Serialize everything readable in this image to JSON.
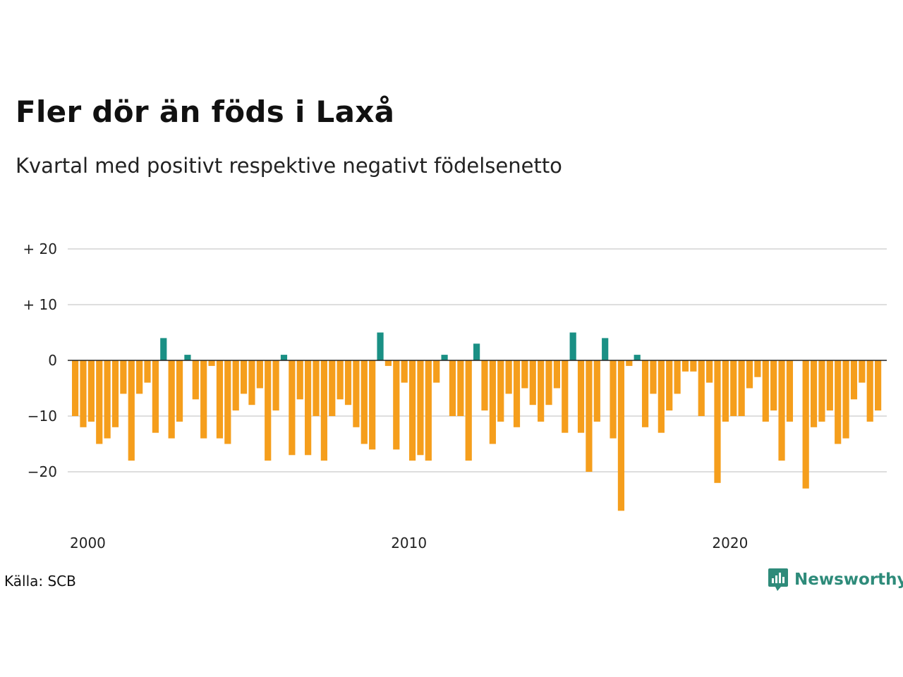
{
  "title": "Fler dör än föds i Laxå",
  "subtitle": "Kvartal med positivt respektive negativt födelsenetto",
  "source": "Källa: SCB",
  "brand": {
    "name": "Newsworthy",
    "icon": "newsworthy-logo-icon",
    "color": "#2e8b7a"
  },
  "colors": {
    "positive": "#1a9085",
    "negative": "#f59e1c",
    "grid": "#dedede",
    "zero_line": "#222222"
  },
  "chart_data": {
    "type": "bar",
    "xlabel": "",
    "ylabel": "",
    "x_start": "2000 Q1",
    "x_step": "quarter",
    "ylim": [
      -28,
      22
    ],
    "y_ticks": [
      20,
      10,
      0,
      -10,
      -20
    ],
    "y_tick_labels": [
      "+ 20",
      "+ 10",
      "0",
      "−10",
      "−20"
    ],
    "x_ticks": [
      "2000",
      "2010",
      "2020"
    ],
    "grid": true,
    "legend": "none",
    "values": [
      -10,
      -12,
      -11,
      -15,
      -14,
      -12,
      -6,
      -18,
      -6,
      -4,
      -13,
      4,
      -14,
      -11,
      1,
      -7,
      -14,
      -1,
      -14,
      -15,
      -9,
      -6,
      -8,
      -5,
      -18,
      -9,
      1,
      -17,
      -7,
      -17,
      -10,
      -18,
      -10,
      -7,
      -8,
      -12,
      -15,
      -16,
      5,
      -1,
      -16,
      -4,
      -18,
      -17,
      -18,
      -4,
      1,
      -10,
      -10,
      -18,
      3,
      -9,
      -15,
      -11,
      -6,
      -12,
      -5,
      -8,
      -11,
      -8,
      -5,
      -13,
      5,
      -13,
      -20,
      -11,
      4,
      -14,
      -27,
      -1,
      1,
      -12,
      -6,
      -13,
      -9,
      -6,
      -2,
      -2,
      -10,
      -4,
      -22,
      -11,
      -10,
      -10,
      -5,
      -3,
      -11,
      -9,
      -18,
      -11,
      0,
      -23,
      -12,
      -11,
      -9,
      -15,
      -14,
      -7,
      -4,
      -11,
      -9
    ]
  }
}
